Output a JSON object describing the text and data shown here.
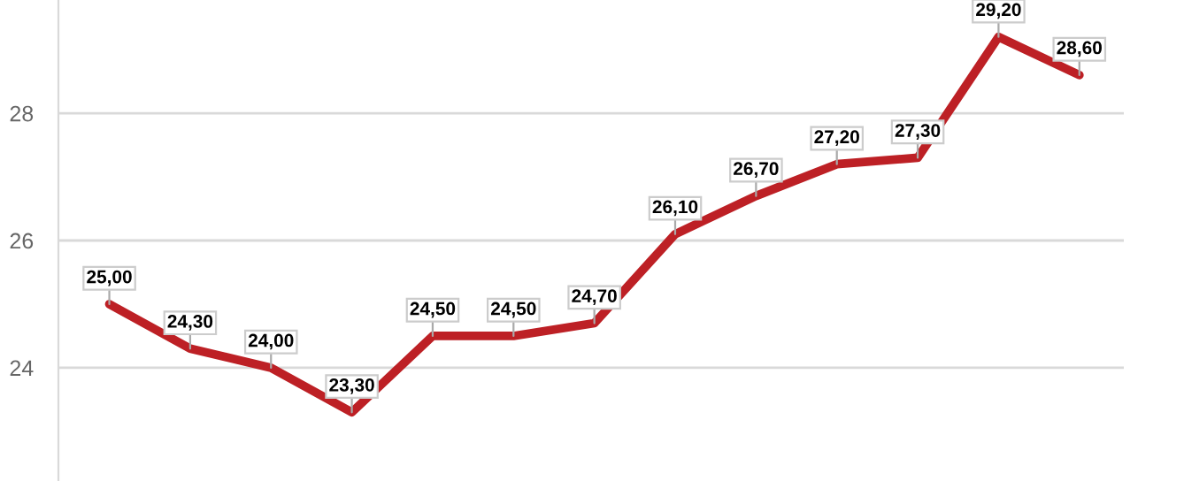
{
  "chart_data": {
    "type": "line",
    "categories": [
      null,
      null,
      null,
      null,
      null,
      null,
      null,
      null,
      null,
      null,
      null,
      null,
      null
    ],
    "series": [
      {
        "color": "#bd2025",
        "values": [
          25.0,
          24.3,
          24.0,
          23.3,
          24.5,
          24.5,
          24.7,
          26.1,
          26.7,
          27.2,
          27.3,
          29.2,
          28.6
        ],
        "value_labels": [
          "25,00",
          "24,30",
          "24,00",
          "23,30",
          "24,50",
          "24,50",
          "24,70",
          "26,10",
          "26,70",
          "27,20",
          "27,30",
          "29,20",
          "28,60"
        ]
      }
    ],
    "ylim": [
      22.22,
      29.78
    ],
    "yticks": [
      24,
      26,
      28
    ],
    "grid": "y",
    "tick_labels": "y",
    "marker": "none",
    "line_style": "solid",
    "legend": false
  }
}
